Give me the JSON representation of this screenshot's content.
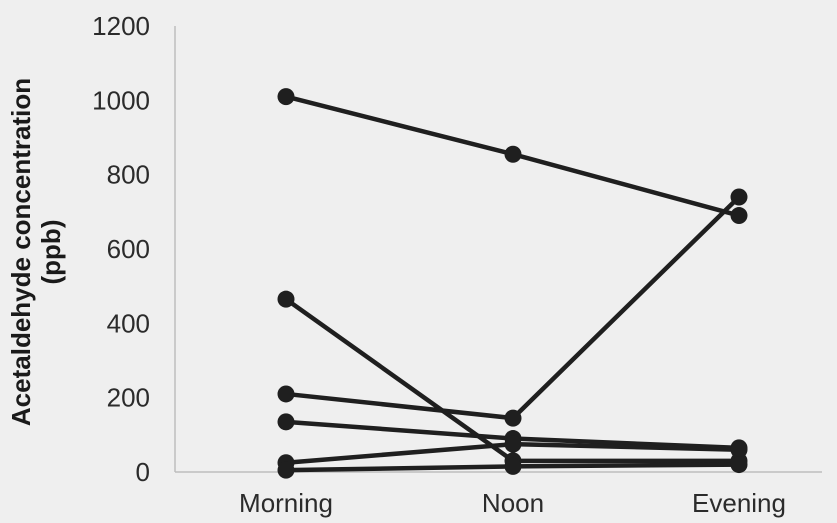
{
  "chart_data": {
    "type": "line",
    "categories": [
      "Morning",
      "Noon",
      "Evening"
    ],
    "ylabel_lines": [
      "Acetaldehyde concentration",
      "(ppb)"
    ],
    "ylim": [
      0,
      1200
    ],
    "yticks": [
      "0",
      "200",
      "400",
      "600",
      "800",
      "1000",
      "1200"
    ],
    "grid": false,
    "legend": "none",
    "series": [
      {
        "values": [
          1010,
          855,
          690
        ]
      },
      {
        "values": [
          465,
          30,
          30
        ]
      },
      {
        "values": [
          210,
          145,
          740
        ]
      },
      {
        "values": [
          135,
          90,
          65
        ]
      },
      {
        "values": [
          25,
          75,
          60
        ]
      },
      {
        "values": [
          5,
          15,
          20
        ]
      }
    ]
  }
}
